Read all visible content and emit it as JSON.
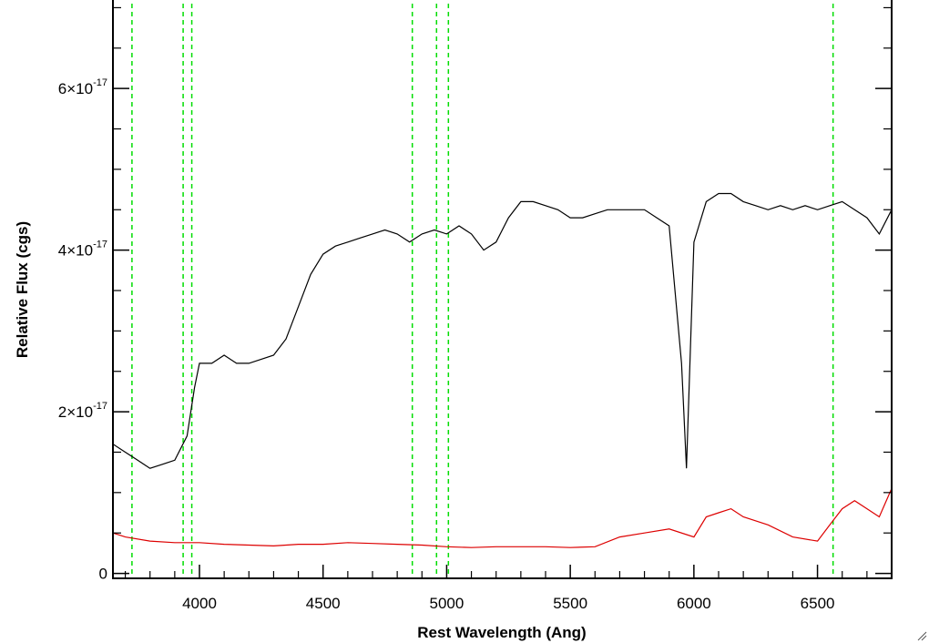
{
  "chart_data": {
    "type": "line",
    "xlabel": "Rest Wavelength (Ang)",
    "ylabel": "Relative Flux (cgs)",
    "xlim": [
      3650,
      6800
    ],
    "ylim": [
      -0.05,
      7.05
    ],
    "y_unit_exponent": -17,
    "x_ticks": [
      {
        "value": 4000,
        "label": "4000"
      },
      {
        "value": 4500,
        "label": "4500"
      },
      {
        "value": 5000,
        "label": "5000"
      },
      {
        "value": 5500,
        "label": "5500"
      },
      {
        "value": 6000,
        "label": "6000"
      },
      {
        "value": 6500,
        "label": "6500"
      }
    ],
    "y_ticks": [
      {
        "value": 0,
        "mantissa": "0",
        "exponent": ""
      },
      {
        "value": 2,
        "mantissa": "2×10",
        "exponent": "-17"
      },
      {
        "value": 4,
        "mantissa": "4×10",
        "exponent": "-17"
      },
      {
        "value": 6,
        "mantissa": "6×10",
        "exponent": "-17"
      }
    ],
    "reference_lines": [
      3727,
      3934,
      3969,
      4861,
      4959,
      5007,
      6563
    ],
    "reference_line_color": "#00dd00",
    "series": [
      {
        "color": "#000000",
        "x": [
          3650,
          3700,
          3750,
          3800,
          3850,
          3900,
          3950,
          3980,
          4000,
          4050,
          4100,
          4150,
          4200,
          4250,
          4300,
          4350,
          4400,
          4450,
          4500,
          4550,
          4600,
          4650,
          4700,
          4750,
          4800,
          4850,
          4900,
          4950,
          5000,
          5050,
          5100,
          5150,
          5200,
          5250,
          5300,
          5350,
          5400,
          5450,
          5500,
          5550,
          5600,
          5650,
          5700,
          5750,
          5800,
          5850,
          5900,
          5950,
          5970,
          6000,
          6050,
          6100,
          6150,
          6200,
          6250,
          6300,
          6350,
          6400,
          6450,
          6500,
          6550,
          6600,
          6650,
          6700,
          6750,
          6800
        ],
        "y": [
          1.6,
          1.5,
          1.4,
          1.3,
          1.35,
          1.4,
          1.7,
          2.3,
          2.6,
          2.6,
          2.7,
          2.6,
          2.6,
          2.65,
          2.7,
          2.9,
          3.3,
          3.7,
          3.95,
          4.05,
          4.1,
          4.15,
          4.2,
          4.25,
          4.2,
          4.1,
          4.2,
          4.25,
          4.2,
          4.3,
          4.2,
          4.0,
          4.1,
          4.4,
          4.6,
          4.6,
          4.55,
          4.5,
          4.4,
          4.4,
          4.45,
          4.5,
          4.5,
          4.5,
          4.5,
          4.4,
          4.3,
          2.6,
          1.3,
          4.1,
          4.6,
          4.7,
          4.7,
          4.6,
          4.55,
          4.5,
          4.55,
          4.5,
          4.55,
          4.5,
          4.55,
          4.6,
          4.5,
          4.4,
          4.2,
          4.5
        ]
      },
      {
        "color": "#dd0000",
        "x": [
          3650,
          3700,
          3800,
          3900,
          4000,
          4100,
          4200,
          4300,
          4400,
          4500,
          4600,
          4700,
          4800,
          4900,
          5000,
          5100,
          5200,
          5300,
          5400,
          5500,
          5600,
          5700,
          5800,
          5900,
          6000,
          6050,
          6100,
          6150,
          6200,
          6300,
          6400,
          6500,
          6550,
          6600,
          6650,
          6700,
          6750,
          6800
        ],
        "y": [
          0.5,
          0.45,
          0.4,
          0.38,
          0.38,
          0.36,
          0.35,
          0.34,
          0.36,
          0.36,
          0.38,
          0.37,
          0.36,
          0.35,
          0.33,
          0.32,
          0.33,
          0.33,
          0.33,
          0.32,
          0.33,
          0.45,
          0.5,
          0.55,
          0.45,
          0.7,
          0.75,
          0.8,
          0.7,
          0.6,
          0.45,
          0.4,
          0.6,
          0.8,
          0.9,
          0.8,
          0.7,
          1.05
        ]
      }
    ]
  }
}
